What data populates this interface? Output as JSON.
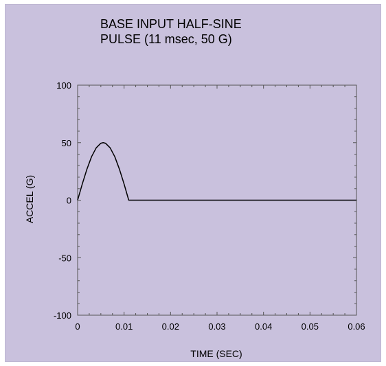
{
  "chart_data": {
    "type": "line",
    "title_lines": [
      "BASE INPUT  HALF-SINE",
      "PULSE (11 msec, 50 G)"
    ],
    "xlabel": "TIME (SEC)",
    "ylabel": "ACCEL (G)",
    "xlim": [
      0,
      0.06
    ],
    "ylim": [
      -100,
      100
    ],
    "x_ticks": [
      0,
      0.01,
      0.02,
      0.03,
      0.04,
      0.05,
      0.06
    ],
    "x_tick_labels": [
      "0",
      "0.01",
      "0.02",
      "0.03",
      "0.04",
      "0.05",
      "0.06"
    ],
    "y_ticks": [
      -100,
      -50,
      0,
      50,
      100
    ],
    "y_tick_labels": [
      "-100",
      "-50",
      "0",
      "50",
      "100"
    ],
    "grid": false,
    "series": [
      {
        "x": [
          0,
          0.001,
          0.002,
          0.003,
          0.004,
          0.005,
          0.0055,
          0.006,
          0.007,
          0.008,
          0.009,
          0.01,
          0.011,
          0.02,
          0.03,
          0.04,
          0.05,
          0.06
        ],
        "y": [
          0,
          14.0,
          26.9,
          37.8,
          45.5,
          49.5,
          50,
          49.5,
          45.5,
          37.8,
          26.9,
          14.0,
          0,
          0,
          0,
          0,
          0,
          0
        ],
        "color": "#000000"
      }
    ]
  }
}
